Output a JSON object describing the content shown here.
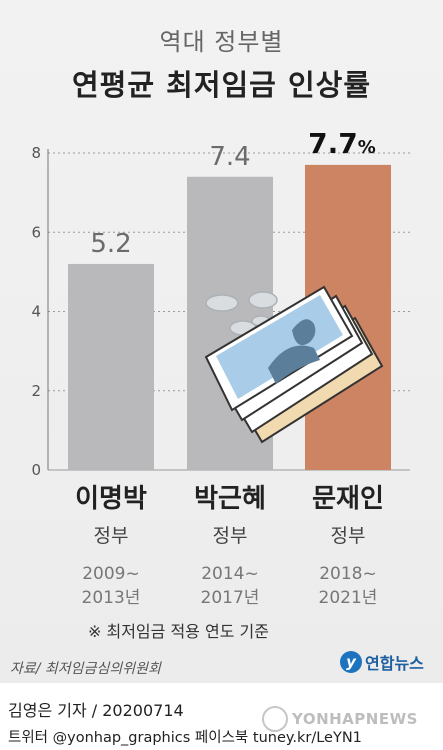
{
  "header": {
    "title_top": "역대 정부별",
    "title_main": "연평균 최저임금 인상률"
  },
  "chart_data": {
    "type": "bar",
    "categories": [
      "이명박",
      "박근혜",
      "문재인"
    ],
    "values": [
      5.2,
      7.4,
      7.7
    ],
    "value_labels": [
      "5.2",
      "7.4",
      "7.7"
    ],
    "unit": "%",
    "ylim": [
      0,
      8
    ],
    "yticks": [
      "0",
      "2",
      "4",
      "6",
      "8"
    ],
    "grid": true,
    "bar_colors": [
      "#b9b9bb",
      "#b9b9bb",
      "#cc8463"
    ],
    "highlight_index": 2
  },
  "categories_info": [
    {
      "name": "이명박",
      "sub": "정부",
      "period": "2009~\n2013년"
    },
    {
      "name": "박근혜",
      "sub": "정부",
      "period": "2014~\n2017년"
    },
    {
      "name": "문재인",
      "sub": "정부",
      "period": "2018~\n2021년"
    }
  ],
  "note": "※ 최저임금 적용 연도 기준",
  "source": "자료/ 최저임금심의위원회",
  "logo": {
    "badge": "y",
    "text": "연합뉴스"
  },
  "credit": "김영은 기자 / 20200714",
  "social": "트위터 @yonhap_graphics  페이스북 tuney.kr/LeYN1",
  "watermark": "YONHAPNEWS",
  "illustration": "money-bills-and-coins-icon"
}
